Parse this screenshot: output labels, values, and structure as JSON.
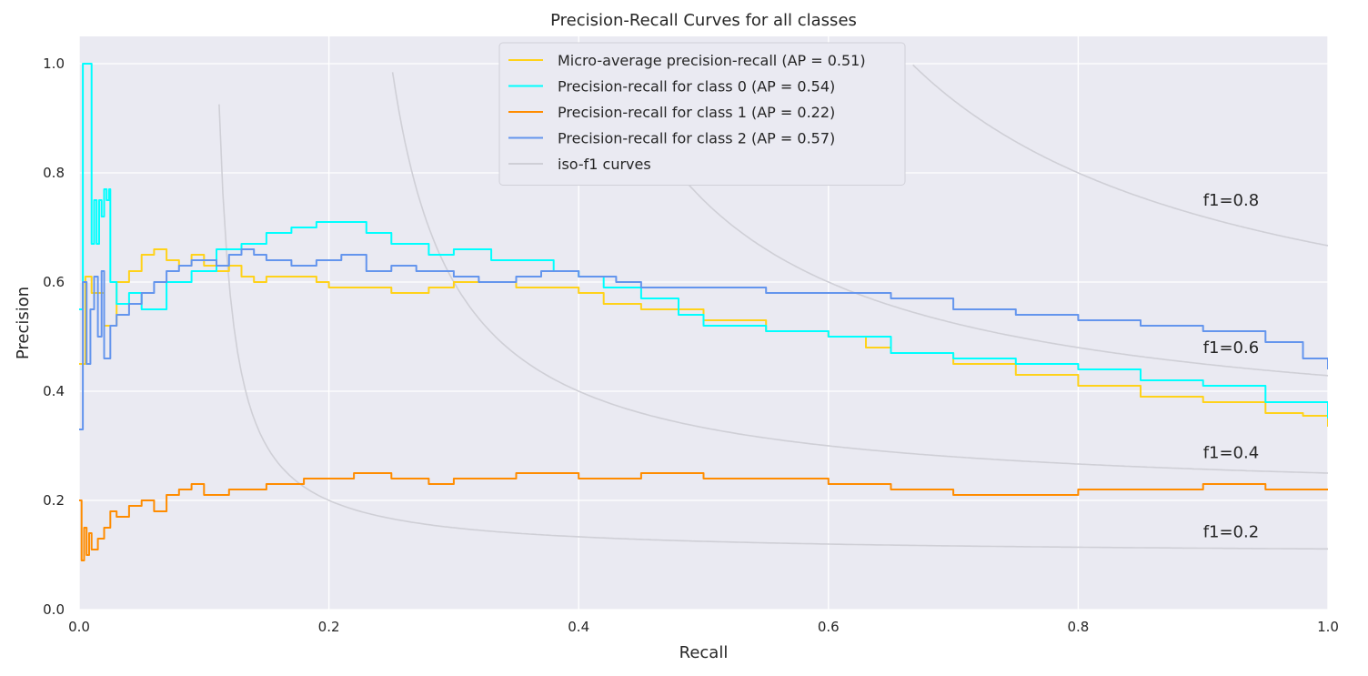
{
  "chart_data": {
    "type": "line",
    "title": "Precision-Recall Curves for all classes",
    "xlabel": "Recall",
    "ylabel": "Precision",
    "xlim": [
      0.0,
      1.0
    ],
    "ylim": [
      0.0,
      1.05
    ],
    "xticks": [
      "0.0",
      "0.2",
      "0.4",
      "0.6",
      "0.8",
      "1.0"
    ],
    "yticks": [
      "0.0",
      "0.2",
      "0.4",
      "0.6",
      "0.8",
      "1.0"
    ],
    "grid": true,
    "legend_position": "top-center",
    "series": [
      {
        "name": "Micro-average precision-recall (AP = 0.51)",
        "color": "#FFD21A",
        "x": [
          0.0,
          0.005,
          0.01,
          0.02,
          0.03,
          0.04,
          0.05,
          0.06,
          0.07,
          0.08,
          0.09,
          0.1,
          0.11,
          0.12,
          0.13,
          0.14,
          0.15,
          0.17,
          0.19,
          0.2,
          0.22,
          0.25,
          0.28,
          0.3,
          0.33,
          0.35,
          0.38,
          0.4,
          0.42,
          0.45,
          0.5,
          0.55,
          0.6,
          0.63,
          0.65,
          0.7,
          0.75,
          0.8,
          0.85,
          0.9,
          0.95,
          0.98,
          1.0
        ],
        "y": [
          0.45,
          0.61,
          0.58,
          0.52,
          0.6,
          0.62,
          0.65,
          0.66,
          0.64,
          0.63,
          0.65,
          0.63,
          0.62,
          0.63,
          0.61,
          0.6,
          0.61,
          0.61,
          0.6,
          0.59,
          0.59,
          0.58,
          0.59,
          0.6,
          0.6,
          0.59,
          0.59,
          0.58,
          0.56,
          0.55,
          0.53,
          0.51,
          0.5,
          0.48,
          0.47,
          0.45,
          0.43,
          0.41,
          0.39,
          0.38,
          0.36,
          0.355,
          0.335
        ]
      },
      {
        "name": "Precision-recall for class 0 (AP = 0.54)",
        "color": "#00FFFF",
        "x": [
          0.0,
          0.003,
          0.006,
          0.008,
          0.01,
          0.012,
          0.014,
          0.016,
          0.018,
          0.02,
          0.022,
          0.024,
          0.025,
          0.03,
          0.04,
          0.05,
          0.07,
          0.09,
          0.11,
          0.13,
          0.15,
          0.17,
          0.19,
          0.21,
          0.23,
          0.25,
          0.28,
          0.3,
          0.33,
          0.36,
          0.38,
          0.4,
          0.42,
          0.45,
          0.48,
          0.5,
          0.55,
          0.6,
          0.65,
          0.7,
          0.75,
          0.8,
          0.85,
          0.9,
          0.95,
          1.0
        ],
        "y": [
          0.55,
          1.0,
          1.0,
          1.0,
          0.67,
          0.75,
          0.67,
          0.75,
          0.72,
          0.77,
          0.75,
          0.77,
          0.6,
          0.56,
          0.58,
          0.55,
          0.6,
          0.62,
          0.66,
          0.67,
          0.69,
          0.7,
          0.71,
          0.71,
          0.69,
          0.67,
          0.65,
          0.66,
          0.64,
          0.64,
          0.62,
          0.61,
          0.59,
          0.57,
          0.54,
          0.52,
          0.51,
          0.5,
          0.47,
          0.46,
          0.45,
          0.44,
          0.42,
          0.41,
          0.38,
          0.35
        ]
      },
      {
        "name": "Precision-recall for class 1 (AP = 0.22)",
        "color": "#FF8C00",
        "x": [
          0.0,
          0.002,
          0.004,
          0.006,
          0.008,
          0.01,
          0.015,
          0.02,
          0.025,
          0.03,
          0.04,
          0.05,
          0.06,
          0.07,
          0.08,
          0.09,
          0.1,
          0.12,
          0.15,
          0.18,
          0.2,
          0.22,
          0.25,
          0.28,
          0.3,
          0.35,
          0.4,
          0.45,
          0.5,
          0.55,
          0.6,
          0.65,
          0.7,
          0.75,
          0.8,
          0.85,
          0.9,
          0.95,
          1.0
        ],
        "y": [
          0.2,
          0.09,
          0.15,
          0.1,
          0.14,
          0.11,
          0.13,
          0.15,
          0.18,
          0.17,
          0.19,
          0.2,
          0.18,
          0.21,
          0.22,
          0.23,
          0.21,
          0.22,
          0.23,
          0.24,
          0.24,
          0.25,
          0.24,
          0.23,
          0.24,
          0.25,
          0.24,
          0.25,
          0.24,
          0.24,
          0.23,
          0.22,
          0.21,
          0.21,
          0.22,
          0.22,
          0.23,
          0.22,
          0.22
        ]
      },
      {
        "name": "Precision-recall for class 2 (AP = 0.57)",
        "color": "#6495ED",
        "x": [
          0.0,
          0.003,
          0.006,
          0.009,
          0.012,
          0.015,
          0.018,
          0.02,
          0.025,
          0.03,
          0.04,
          0.05,
          0.06,
          0.07,
          0.08,
          0.09,
          0.1,
          0.11,
          0.12,
          0.13,
          0.14,
          0.15,
          0.17,
          0.19,
          0.21,
          0.23,
          0.25,
          0.27,
          0.3,
          0.32,
          0.35,
          0.37,
          0.4,
          0.43,
          0.45,
          0.5,
          0.55,
          0.6,
          0.65,
          0.7,
          0.75,
          0.8,
          0.85,
          0.9,
          0.95,
          0.98,
          1.0
        ],
        "y": [
          0.33,
          0.6,
          0.45,
          0.55,
          0.61,
          0.5,
          0.62,
          0.46,
          0.52,
          0.54,
          0.56,
          0.58,
          0.6,
          0.62,
          0.63,
          0.64,
          0.64,
          0.63,
          0.65,
          0.66,
          0.65,
          0.64,
          0.63,
          0.64,
          0.65,
          0.62,
          0.63,
          0.62,
          0.61,
          0.6,
          0.61,
          0.62,
          0.61,
          0.6,
          0.59,
          0.59,
          0.58,
          0.58,
          0.57,
          0.55,
          0.54,
          0.53,
          0.52,
          0.51,
          0.49,
          0.46,
          0.44
        ]
      }
    ],
    "iso_f1": {
      "name": "iso-f1 curves",
      "color": "#cfcfd6",
      "values": [
        0.2,
        0.4,
        0.6,
        0.8
      ],
      "labels": [
        "f1=0.2",
        "f1=0.4",
        "f1=0.6",
        "f1=0.8"
      ]
    }
  }
}
